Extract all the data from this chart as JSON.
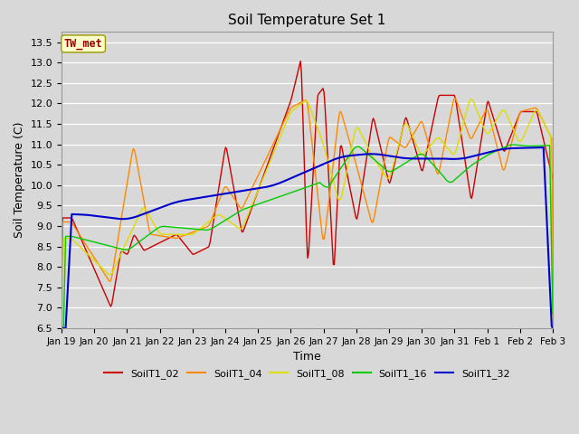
{
  "title": "Soil Temperature Set 1",
  "xlabel": "Time",
  "ylabel": "Soil Temperature (C)",
  "ylim": [
    6.5,
    13.75
  ],
  "yticks": [
    6.5,
    7.0,
    7.5,
    8.0,
    8.5,
    9.0,
    9.5,
    10.0,
    10.5,
    11.0,
    11.5,
    12.0,
    12.5,
    13.0,
    13.5
  ],
  "background_color": "#d8d8d8",
  "plot_bg_color": "#d8d8d8",
  "annotation_text": "TW_met",
  "annotation_color": "#990000",
  "annotation_bg": "#ffffcc",
  "series_colors": {
    "SoilT1_02": "#cc0000",
    "SoilT1_04": "#ff8800",
    "SoilT1_08": "#dddd00",
    "SoilT1_16": "#00cc00",
    "SoilT1_32": "#0000cc"
  },
  "x_tick_labels": [
    "Jan 19",
    "Jan 20",
    "Jan 21",
    "Jan 22",
    "Jan 23",
    "Jan 24",
    "Jan 25",
    "Jan 26",
    "Jan 27",
    "Jan 28",
    "Jan 29",
    "Jan 30",
    "Jan 31",
    "Feb 1",
    "Feb 2",
    "Feb 3"
  ],
  "num_points": 480
}
